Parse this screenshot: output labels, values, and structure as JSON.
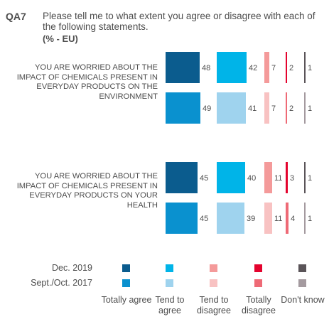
{
  "question": {
    "code": "QA7",
    "text": "Please tell me to what extent you agree or disagree with each of the following statements.",
    "subtitle": "(% - EU)"
  },
  "legend": {
    "periods": [
      "Dec. 2019",
      "Sept./Oct. 2017"
    ],
    "categories": [
      "Totally agree",
      "Tend to agree",
      "Tend to disagree",
      "Totally disagree",
      "Don't know"
    ]
  },
  "colors": {
    "dec2019": [
      "#0b5c8e",
      "#00b4e8",
      "#f49a9a",
      "#e4032e",
      "#5a5458"
    ],
    "sept2017": [
      "#0a91cf",
      "#9fd3ee",
      "#f8c2c2",
      "#ee6a76",
      "#a49a9f"
    ],
    "text": "#4d4d4d"
  },
  "chart_data": {
    "type": "bar",
    "orientation": "horizontal",
    "categories": [
      "Totally agree",
      "Tend to agree",
      "Tend to disagree",
      "Totally disagree",
      "Don't know"
    ],
    "groups": [
      {
        "statement": "YOU ARE WORRIED ABOUT THE IMPACT OF CHEMICALS PRESENT IN EVERYDAY PRODUCTS ON THE ENVIRONMENT",
        "series": [
          {
            "name": "Dec. 2019",
            "values": [
              48,
              42,
              7,
              2,
              1
            ]
          },
          {
            "name": "Sept./Oct. 2017",
            "values": [
              49,
              41,
              7,
              2,
              1
            ]
          }
        ]
      },
      {
        "statement": "YOU ARE WORRIED ABOUT THE IMPACT OF CHEMICALS PRESENT IN EVERYDAY PRODUCTS ON YOUR HEALTH",
        "series": [
          {
            "name": "Dec. 2019",
            "values": [
              45,
              40,
              11,
              3,
              1
            ]
          },
          {
            "name": "Sept./Oct. 2017",
            "values": [
              45,
              39,
              11,
              4,
              1
            ]
          }
        ]
      }
    ]
  }
}
